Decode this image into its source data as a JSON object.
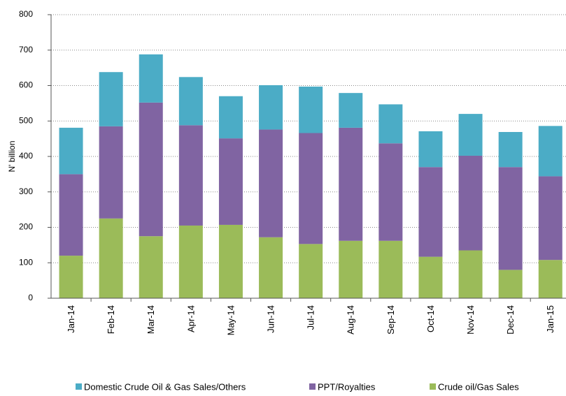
{
  "chart_data": {
    "type": "stacked-bar",
    "y_label": "N' billion",
    "categories": [
      "Jan-14",
      "Feb-14",
      "Mar-14",
      "Apr-14",
      "May-14",
      "Jun-14",
      "Jul-14",
      "Aug-14",
      "Sep-14",
      "Oct-14",
      "Nov-14",
      "Dec-14",
      "Jan-15"
    ],
    "series": [
      {
        "name": "Domestic Crude Oil & Gas Sales/Others",
        "color": "#4bacc6",
        "values": [
          131,
          153,
          136,
          136,
          119,
          125,
          131,
          98,
          110,
          101,
          118,
          99,
          142
        ]
      },
      {
        "name": "PPT/Royalties",
        "color": "#8064a2",
        "values": [
          230,
          260,
          377,
          283,
          244,
          304,
          313,
          319,
          275,
          253,
          267,
          290,
          236
        ]
      },
      {
        "name": "Crude oil/Gas Sales",
        "color": "#9bbb59",
        "values": [
          120,
          225,
          175,
          205,
          207,
          172,
          153,
          162,
          162,
          117,
          135,
          80,
          108
        ]
      }
    ],
    "ylim": [
      0,
      800
    ],
    "yticks": [
      0,
      100,
      200,
      300,
      400,
      500,
      600,
      700,
      800
    ],
    "grid": true
  }
}
